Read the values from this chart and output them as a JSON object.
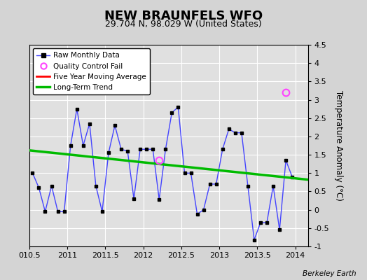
{
  "title": "NEW BRAUNFELS WFO",
  "subtitle": "29.704 N, 98.029 W (United States)",
  "ylabel": "Temperature Anomaly (°C)",
  "credit": "Berkeley Earth",
  "xlim": [
    2010.5,
    2014.17
  ],
  "ylim": [
    -1.0,
    4.5
  ],
  "yticks": [
    -1.0,
    -0.5,
    0.0,
    0.5,
    1.0,
    1.5,
    2.0,
    2.5,
    3.0,
    3.5,
    4.0,
    4.5
  ],
  "xticks": [
    2010.5,
    2011.0,
    2011.5,
    2012.0,
    2012.5,
    2013.0,
    2013.5,
    2014.0
  ],
  "xticklabels": [
    "010.5",
    "2011",
    "2011.5",
    "2012",
    "2012.5",
    "2013",
    "2013.5",
    "2014"
  ],
  "bg_color": "#d4d4d4",
  "plot_bg_color": "#e0e0e0",
  "grid_color": "white",
  "raw_x": [
    2010.542,
    2010.625,
    2010.708,
    2010.792,
    2010.875,
    2010.958,
    2011.042,
    2011.125,
    2011.208,
    2011.292,
    2011.375,
    2011.458,
    2011.542,
    2011.625,
    2011.708,
    2011.792,
    2011.875,
    2011.958,
    2012.042,
    2012.125,
    2012.208,
    2012.292,
    2012.375,
    2012.458,
    2012.542,
    2012.625,
    2012.708,
    2012.792,
    2012.875,
    2012.958,
    2013.042,
    2013.125,
    2013.208,
    2013.292,
    2013.375,
    2013.458,
    2013.542,
    2013.625,
    2013.708,
    2013.792,
    2013.875,
    2013.958
  ],
  "raw_y": [
    1.0,
    0.6,
    -0.05,
    0.65,
    -0.05,
    -0.05,
    1.75,
    2.75,
    1.75,
    2.35,
    0.65,
    -0.05,
    1.55,
    2.3,
    1.65,
    1.6,
    0.3,
    1.65,
    1.65,
    1.65,
    0.28,
    1.65,
    2.65,
    2.8,
    1.0,
    1.0,
    -0.12,
    0.0,
    0.7,
    0.7,
    1.65,
    2.2,
    2.1,
    2.1,
    0.65,
    -0.82,
    -0.35,
    -0.35,
    0.65,
    -0.55,
    1.35,
    0.9
  ],
  "qc_fail_x": [
    2013.875
  ],
  "qc_fail_y": [
    3.2
  ],
  "qc_fail2_x": [
    2012.208
  ],
  "qc_fail2_y": [
    1.35
  ],
  "trend_x": [
    2010.5,
    2014.17
  ],
  "trend_y": [
    1.62,
    0.82
  ],
  "raw_line_color": "#4444ff",
  "raw_marker_color": "black",
  "trend_color": "#00bb00",
  "qc_color": "#ff44ff",
  "five_yr_color": "red",
  "legend_bg": "white",
  "title_fontsize": 13,
  "subtitle_fontsize": 9,
  "label_fontsize": 8.5,
  "tick_fontsize": 8
}
